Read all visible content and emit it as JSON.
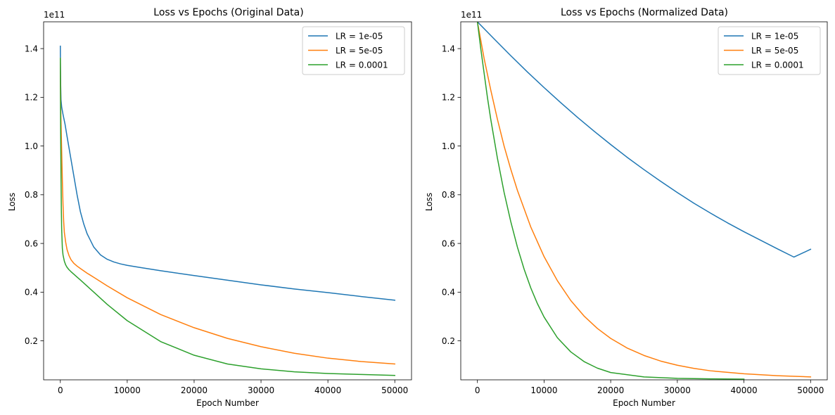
{
  "chart_data": [
    {
      "type": "line",
      "title": "Loss vs Epochs (Original Data)",
      "xlabel": "Epoch Number",
      "ylabel": "Loss",
      "y_offset_label": "1e11",
      "y_scale": 100000000000,
      "xlim": [
        -2500,
        52500
      ],
      "ylim": [
        0.04,
        1.51
      ],
      "x_ticks": [
        0,
        10000,
        20000,
        30000,
        40000,
        50000
      ],
      "x_tick_labels": [
        "0",
        "10000",
        "20000",
        "30000",
        "40000",
        "50000"
      ],
      "y_ticks": [
        0.2,
        0.4,
        0.6,
        0.8,
        1.0,
        1.2,
        1.4
      ],
      "y_tick_labels": [
        "0.2",
        "0.4",
        "0.6",
        "0.8",
        "1.0",
        "1.2",
        "1.4"
      ],
      "grid": false,
      "legend_position": "top-right",
      "series": [
        {
          "name": "LR = 1e-05",
          "color": "#1f77b4",
          "x": [
            0,
            10,
            50,
            100,
            200,
            400,
            700,
            1000,
            1500,
            2000,
            2500,
            3000,
            3500,
            4000,
            5000,
            6000,
            7000,
            8000,
            9000,
            10000,
            12000,
            15000,
            20000,
            25000,
            30000,
            35000,
            40000,
            45000,
            50000
          ],
          "y": [
            1.41,
            1.34,
            1.25,
            1.19,
            1.16,
            1.13,
            1.09,
            1.04,
            0.96,
            0.88,
            0.8,
            0.73,
            0.68,
            0.64,
            0.585,
            0.553,
            0.535,
            0.524,
            0.516,
            0.51,
            0.501,
            0.488,
            0.468,
            0.449,
            0.43,
            0.413,
            0.398,
            0.382,
            0.367
          ]
        },
        {
          "name": "LR = 5e-05",
          "color": "#ff7f0e",
          "x": [
            0,
            20,
            50,
            100,
            200,
            300,
            400,
            500,
            600,
            800,
            1000,
            1300,
            1600,
            2000,
            2500,
            3000,
            4000,
            5000,
            7000,
            10000,
            15000,
            20000,
            25000,
            30000,
            35000,
            40000,
            45000,
            50000
          ],
          "y": [
            1.36,
            1.25,
            1.17,
            1.1,
            0.98,
            0.86,
            0.76,
            0.69,
            0.645,
            0.605,
            0.575,
            0.55,
            0.533,
            0.519,
            0.507,
            0.497,
            0.478,
            0.461,
            0.426,
            0.377,
            0.308,
            0.254,
            0.21,
            0.176,
            0.149,
            0.129,
            0.115,
            0.105
          ]
        },
        {
          "name": "LR = 0.0001",
          "color": "#2ca02c",
          "x": [
            0,
            20,
            50,
            100,
            150,
            200,
            300,
            400,
            600,
            800,
            1000,
            1300,
            1600,
            2000,
            2500,
            3000,
            4000,
            5000,
            7000,
            10000,
            15000,
            20000,
            25000,
            30000,
            35000,
            40000,
            45000,
            50000
          ],
          "y": [
            1.36,
            1.2,
            1.05,
            0.88,
            0.74,
            0.66,
            0.58,
            0.553,
            0.527,
            0.512,
            0.502,
            0.492,
            0.484,
            0.474,
            0.462,
            0.45,
            0.425,
            0.4,
            0.35,
            0.283,
            0.197,
            0.141,
            0.105,
            0.085,
            0.073,
            0.066,
            0.062,
            0.058
          ]
        }
      ]
    },
    {
      "type": "line",
      "title": "Loss vs Epochs (Normalized Data)",
      "xlabel": "Epoch Number",
      "ylabel": "Loss",
      "y_offset_label": "1e11",
      "y_scale": 100000000000,
      "xlim": [
        -2500,
        52500
      ],
      "ylim": [
        0.04,
        1.51
      ],
      "x_ticks": [
        0,
        10000,
        20000,
        30000,
        40000,
        50000
      ],
      "x_tick_labels": [
        "0",
        "10000",
        "20000",
        "30000",
        "40000",
        "50000"
      ],
      "y_ticks": [
        0.2,
        0.4,
        0.6,
        0.8,
        1.0,
        1.2,
        1.4
      ],
      "y_tick_labels": [
        "0.2",
        "0.4",
        "0.6",
        "0.8",
        "1.0",
        "1.2",
        "1.4"
      ],
      "grid": false,
      "legend_position": "top-right",
      "series": [
        {
          "name": "LR = 1e-05",
          "color": "#1f77b4",
          "x": [
            0,
            2500,
            5000,
            7500,
            10000,
            12500,
            15000,
            17500,
            20000,
            22500,
            25000,
            27500,
            30000,
            32500,
            35000,
            37500,
            40000,
            42500,
            45000,
            47500,
            50000
          ],
          "y": [
            1.51,
            1.44,
            1.371,
            1.304,
            1.24,
            1.178,
            1.118,
            1.061,
            1.006,
            0.953,
            0.903,
            0.855,
            0.809,
            0.765,
            0.724,
            0.685,
            0.648,
            0.613,
            0.578,
            0.544,
            0.576
          ]
        },
        {
          "name": "LR = 5e-05",
          "color": "#ff7f0e",
          "x": [
            0,
            1000,
            2000,
            3000,
            4000,
            5000,
            6000,
            8000,
            10000,
            12000,
            14000,
            16000,
            18000,
            20000,
            22500,
            25000,
            27500,
            30000,
            32500,
            35000,
            40000,
            45000,
            50000
          ],
          "y": [
            1.51,
            1.36,
            1.23,
            1.11,
            1.0,
            0.905,
            0.818,
            0.668,
            0.546,
            0.447,
            0.366,
            0.302,
            0.251,
            0.21,
            0.17,
            0.14,
            0.117,
            0.1,
            0.087,
            0.077,
            0.065,
            0.057,
            0.052
          ]
        },
        {
          "name": "LR = 0.0001",
          "color": "#2ca02c",
          "x": [
            0,
            500,
            1000,
            1500,
            2000,
            3000,
            4000,
            5000,
            6000,
            7000,
            8000,
            9000,
            10000,
            12000,
            14000,
            16000,
            18000,
            20000,
            25000,
            30000,
            35000,
            40000
          ],
          "y": [
            1.51,
            1.4,
            1.3,
            1.2,
            1.11,
            0.95,
            0.81,
            0.69,
            0.585,
            0.495,
            0.418,
            0.353,
            0.298,
            0.213,
            0.155,
            0.115,
            0.088,
            0.07,
            0.052,
            0.046,
            0.044,
            0.043
          ]
        }
      ]
    }
  ]
}
